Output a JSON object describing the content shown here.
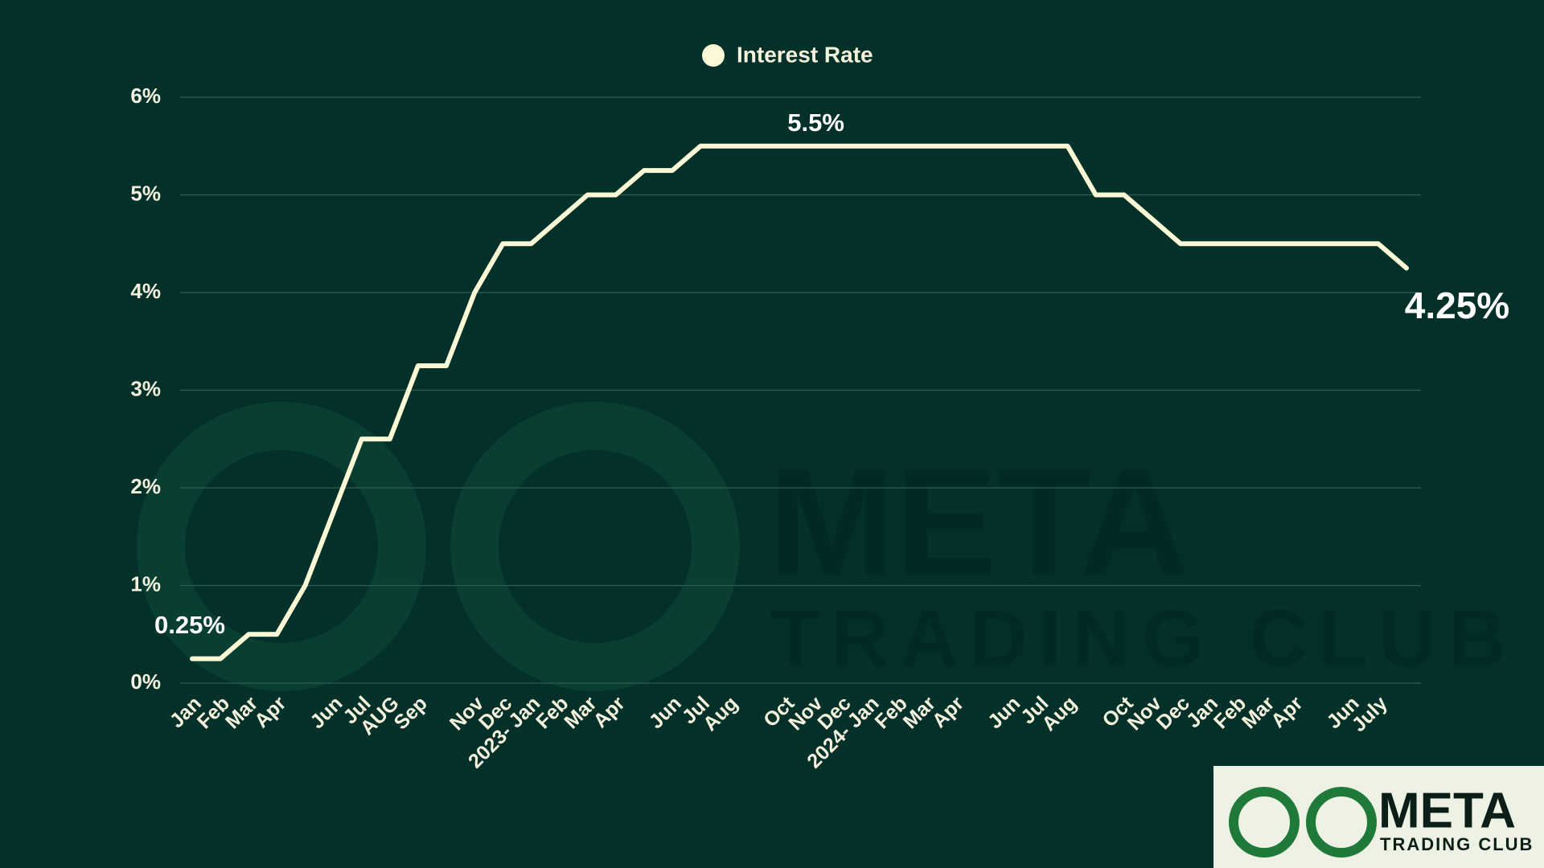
{
  "chart_data": {
    "type": "line",
    "categories": [
      "Jan",
      "Feb",
      "Mar",
      "Apr",
      null,
      "Jun",
      "Jul",
      "AUG",
      "Sep",
      null,
      "Nov",
      "Dec",
      "2023- Jan",
      "Feb",
      "Mar",
      "Apr",
      null,
      "Jun",
      "Jul",
      "Aug",
      null,
      "Oct",
      "Nov",
      "Dec",
      "2024- Jan",
      "Feb",
      "Mar",
      "Apr",
      null,
      "Jun",
      "Jul",
      "Aug",
      null,
      "Oct",
      "Nov",
      "Dec",
      "Jan",
      "Feb",
      "Mar",
      "Apr",
      null,
      "Jun",
      "July",
      null
    ],
    "series": [
      {
        "name": "Interest Rate",
        "color": "#fbf8d6",
        "values": [
          0.25,
          0.25,
          0.5,
          0.5,
          1,
          1.75,
          2.5,
          2.5,
          3.25,
          3.25,
          4,
          4.5,
          4.5,
          4.75,
          5,
          5,
          5.25,
          5.25,
          5.5,
          5.5,
          5.5,
          5.5,
          5.5,
          5.5,
          5.5,
          5.5,
          5.5,
          5.5,
          5.5,
          5.5,
          5.5,
          5.5,
          5,
          5,
          4.75,
          4.5,
          4.5,
          4.5,
          4.5,
          4.5,
          4.5,
          4.5,
          4.5,
          4.25
        ],
        "value_labels": [
          "0.25%",
          null,
          null,
          null,
          null,
          null,
          null,
          null,
          null,
          null,
          null,
          null,
          null,
          null,
          null,
          null,
          null,
          null,
          null,
          null,
          null,
          null,
          "5.5%",
          null,
          null,
          null,
          null,
          null,
          null,
          null,
          null,
          null,
          null,
          null,
          null,
          null,
          null,
          null,
          null,
          null,
          null,
          null,
          null,
          "4.25%"
        ]
      }
    ],
    "ylim": [
      0,
      6
    ],
    "yticks": [
      {
        "value": 0,
        "label": "0%"
      },
      {
        "value": 1,
        "label": "1%"
      },
      {
        "value": 2,
        "label": "2%"
      },
      {
        "value": 3,
        "label": "3%"
      },
      {
        "value": 4,
        "label": "4%"
      },
      {
        "value": 5,
        "label": "5%"
      },
      {
        "value": 6,
        "label": "6%"
      }
    ],
    "grid": true,
    "legend": "top"
  },
  "watermark": {
    "title": "META",
    "subtitle": "TRADING CLUB"
  },
  "logo": {
    "title": "META",
    "subtitle": "TRADING CLUB"
  }
}
